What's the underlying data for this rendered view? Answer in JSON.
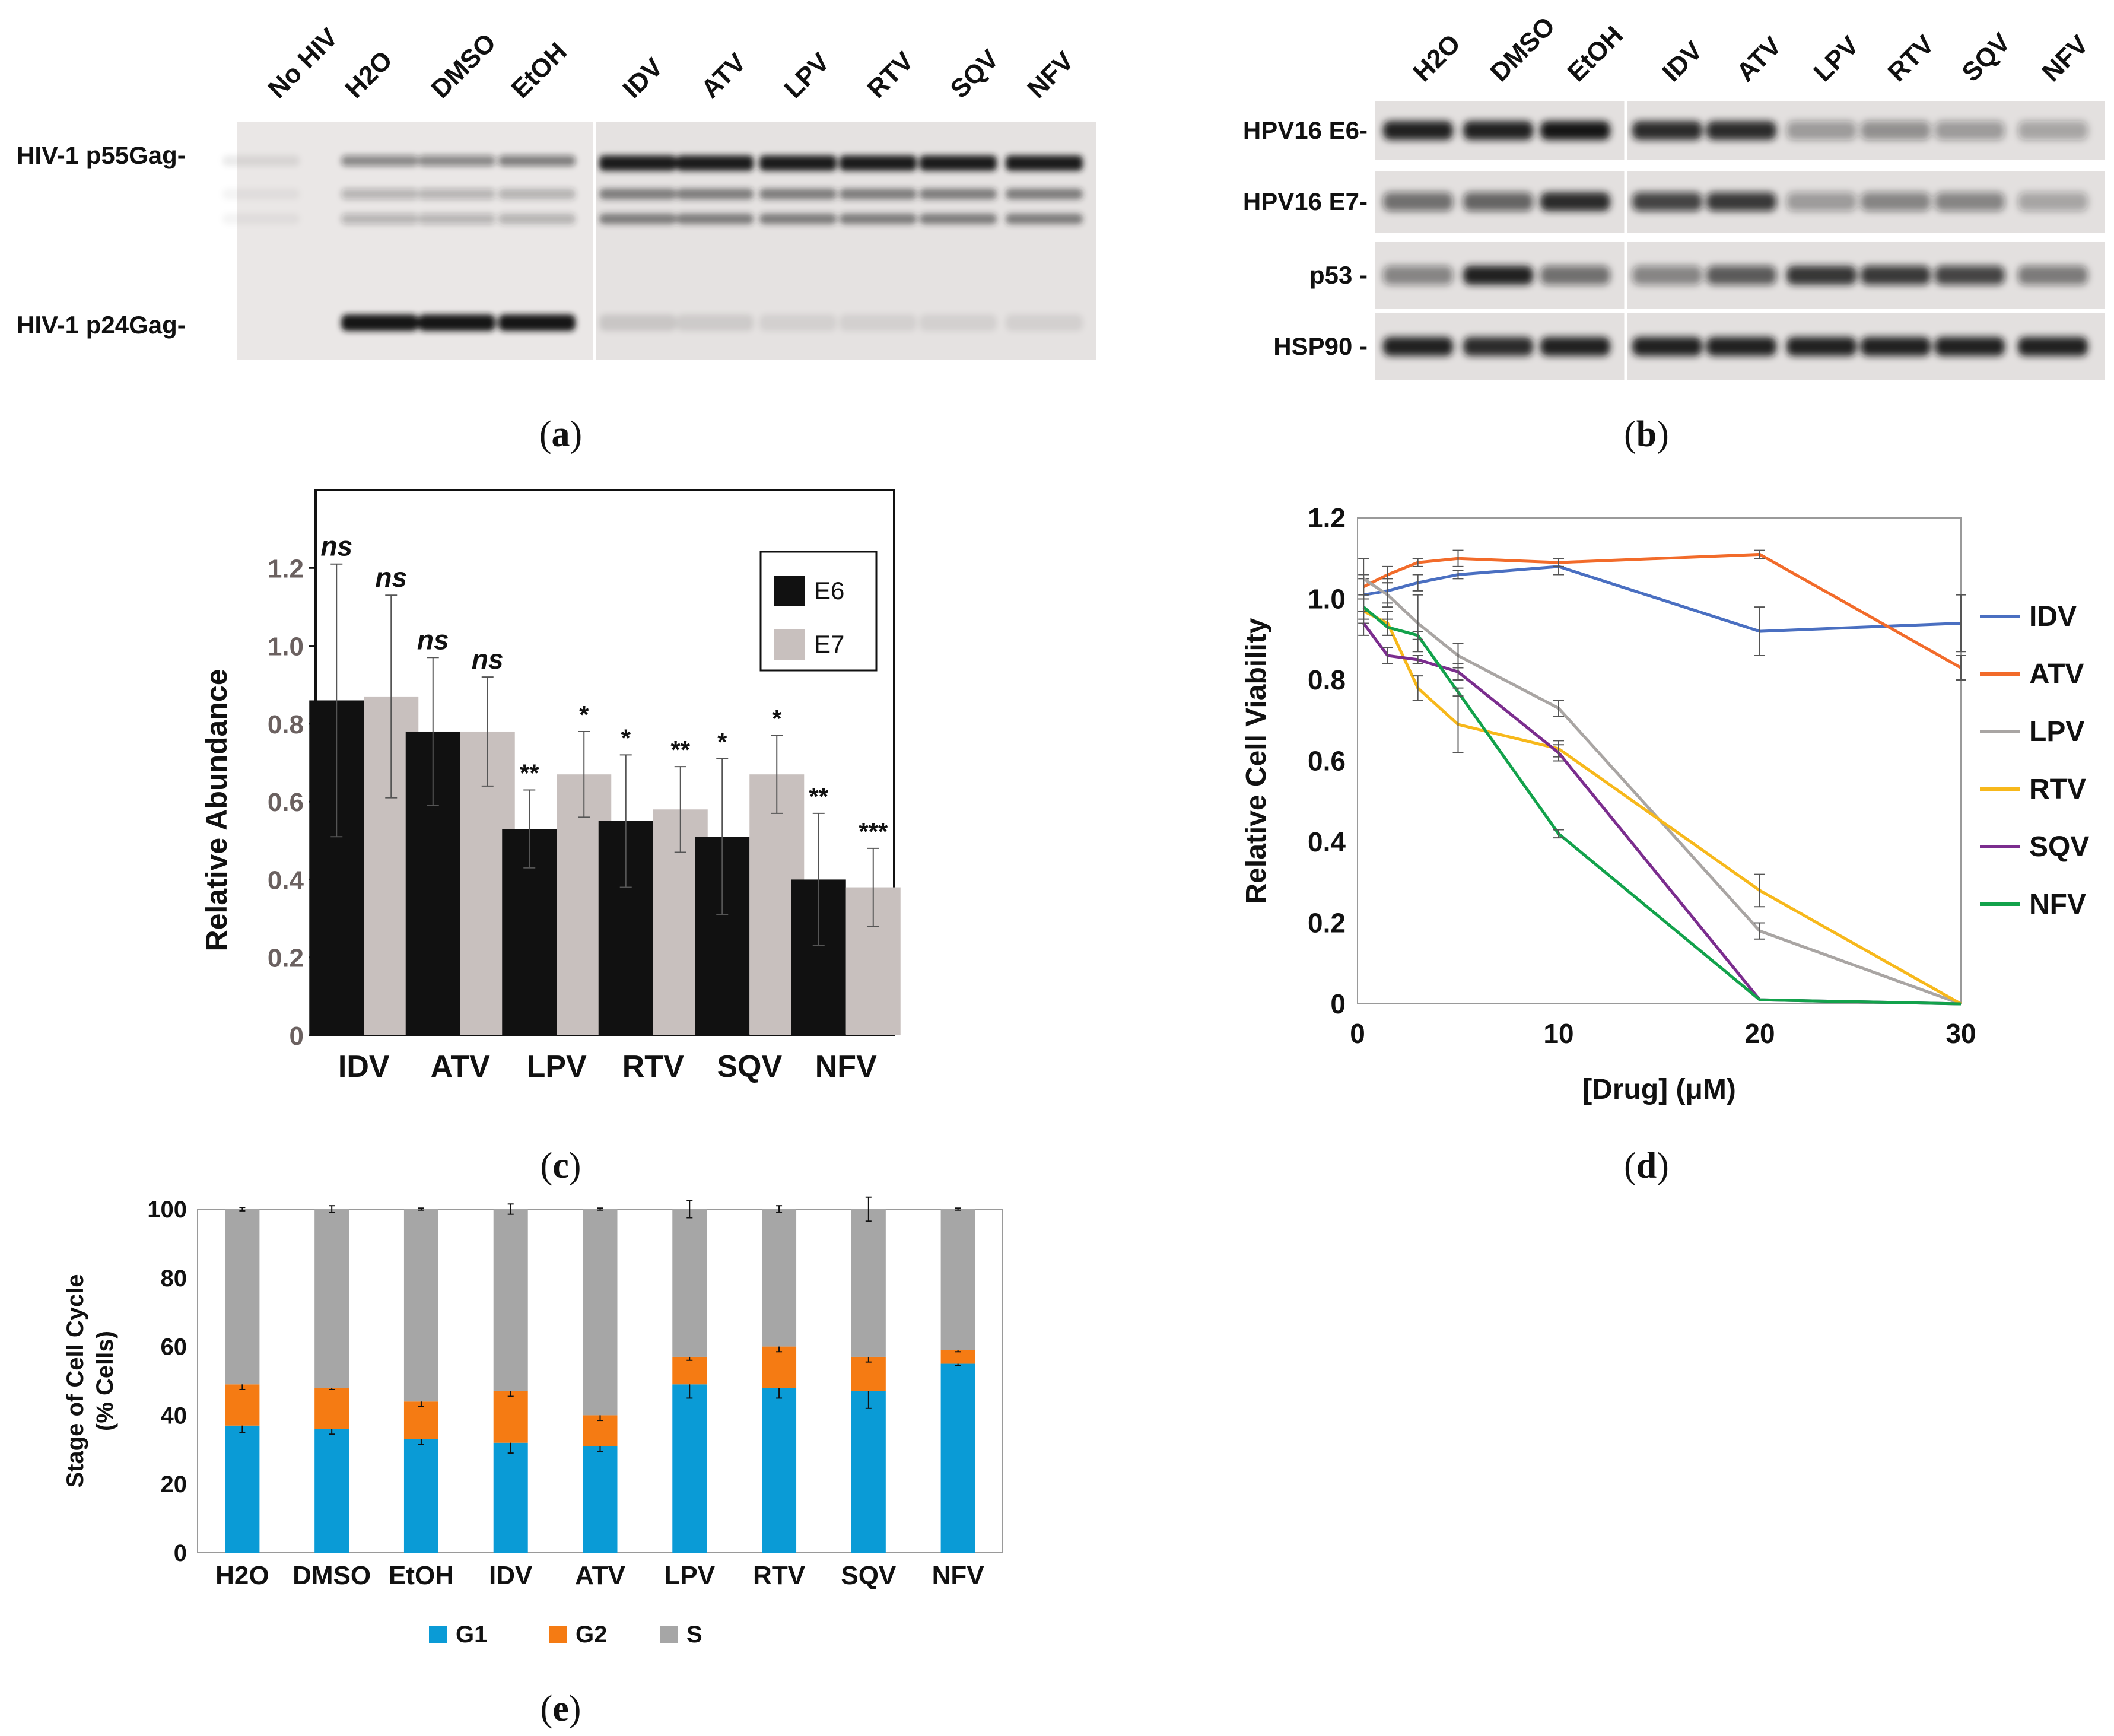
{
  "panel_a": {
    "letter": "a",
    "lanes": [
      "No HIV",
      "H2O",
      "DMSO",
      "EtOH",
      "IDV",
      "ATV",
      "LPV",
      "RTV",
      "SQV",
      "NFV"
    ],
    "bands": [
      "HIV-1 p55Gag-",
      "HIV-1 p24Gag-"
    ]
  },
  "panel_b": {
    "letter": "b",
    "lanes": [
      "H2O",
      "DMSO",
      "EtOH",
      "IDV",
      "ATV",
      "LPV",
      "RTV",
      "SQV",
      "NFV"
    ],
    "rows": [
      "HPV16 E6-",
      "HPV16 E7-",
      "p53 -",
      "HSP90 -"
    ]
  },
  "panel_c": {
    "letter": "c"
  },
  "panel_d": {
    "letter": "d"
  },
  "panel_e": {
    "letter": "e"
  },
  "chart_data": [
    {
      "id": "c",
      "type": "bar",
      "categories": [
        "IDV",
        "ATV",
        "LPV",
        "RTV",
        "SQV",
        "NFV"
      ],
      "series": [
        {
          "name": "E6",
          "color": "#111111",
          "values": [
            0.86,
            0.78,
            0.53,
            0.55,
            0.51,
            0.4
          ],
          "errors": [
            0.35,
            0.19,
            0.1,
            0.17,
            0.2,
            0.17
          ],
          "sig": [
            "ns",
            "ns",
            "**",
            "*",
            "*",
            "**"
          ]
        },
        {
          "name": "E7",
          "color": "#c8c0be",
          "values": [
            0.87,
            0.78,
            0.67,
            0.58,
            0.67,
            0.38
          ],
          "errors": [
            0.26,
            0.14,
            0.11,
            0.11,
            0.1,
            0.1
          ],
          "sig": [
            "ns",
            "ns",
            "*",
            "**",
            "*",
            "***"
          ]
        }
      ],
      "ylabel": "Relative Abundance",
      "ylim": [
        0,
        1.4
      ],
      "yticks": [
        "0",
        "0.2",
        "0.4",
        "0.6",
        "0.8",
        "1.0",
        "1.2"
      ],
      "legend": "top-right"
    },
    {
      "id": "d",
      "type": "line",
      "xlabel": "[Drug] (μM)",
      "ylabel": "Relative Cell Viability",
      "xlim": [
        0,
        30
      ],
      "ylim": [
        0,
        1.2
      ],
      "xticks": [
        "0",
        "10",
        "20",
        "30"
      ],
      "yticks": [
        "0",
        "0.2",
        "0.4",
        "0.6",
        "0.8",
        "1.0",
        "1.2"
      ],
      "x": [
        0.3,
        1.5,
        3,
        5,
        10,
        20,
        30
      ],
      "series": [
        {
          "name": "IDV",
          "color": "#4a6fc1",
          "values": [
            1.01,
            1.02,
            1.04,
            1.06,
            1.08,
            0.92,
            0.94
          ],
          "errors": [
            0.04,
            0.03,
            0.02,
            0.01,
            0.02,
            0.06,
            0.07
          ]
        },
        {
          "name": "ATV",
          "color": "#f26b2a",
          "values": [
            1.03,
            1.06,
            1.09,
            1.1,
            1.09,
            1.11,
            0.83
          ],
          "errors": [
            0.03,
            0.02,
            0.01,
            0.02,
            0.01,
            0.01,
            0.03
          ]
        },
        {
          "name": "LPV",
          "color": "#a9a5a3",
          "values": [
            1.05,
            1.01,
            0.94,
            0.86,
            0.73,
            0.18,
            0.0
          ],
          "errors": [
            0.05,
            0.03,
            0.07,
            0.03,
            0.02,
            0.02,
            0.0
          ]
        },
        {
          "name": "RTV",
          "color": "#f7b81b",
          "values": [
            0.97,
            0.94,
            0.78,
            0.69,
            0.63,
            0.28,
            0.0
          ],
          "errors": [
            0.03,
            0.03,
            0.03,
            0.07,
            0.02,
            0.04,
            0.0
          ]
        },
        {
          "name": "SQV",
          "color": "#7b2d8e",
          "values": [
            0.94,
            0.86,
            0.85,
            0.82,
            0.62,
            0.01,
            0.0
          ],
          "errors": [
            0.03,
            0.02,
            0.01,
            0.02,
            0.02,
            0.0,
            0.0
          ]
        },
        {
          "name": "NFV",
          "color": "#12a24b",
          "values": [
            0.98,
            0.93,
            0.91,
            0.77,
            0.42,
            0.01,
            0.0
          ],
          "errors": [
            0.03,
            0.02,
            0.01,
            0.01,
            0.01,
            0.0,
            0.0
          ]
        }
      ],
      "legend": "right"
    },
    {
      "id": "e",
      "type": "bar",
      "stacked": true,
      "categories": [
        "H2O",
        "DMSO",
        "EtOH",
        "IDV",
        "ATV",
        "LPV",
        "RTV",
        "SQV",
        "NFV"
      ],
      "series": [
        {
          "name": "G1",
          "color": "#0a9bd6",
          "values": [
            37,
            36,
            33,
            32,
            31,
            49,
            48,
            47,
            55
          ],
          "errors": [
            2,
            1.5,
            1.5,
            3,
            1.5,
            4,
            3,
            5,
            0.5
          ]
        },
        {
          "name": "G2",
          "color": "#f57b13",
          "values": [
            12,
            12,
            11,
            15,
            9,
            8,
            12,
            10,
            4
          ],
          "errors": [
            1.5,
            0.5,
            1.5,
            1.5,
            1.5,
            1,
            1.5,
            1.5,
            0.5
          ]
        },
        {
          "name": "S",
          "color": "#a6a6a6",
          "values": [
            51,
            52,
            56,
            53,
            60,
            43,
            40,
            43,
            41
          ],
          "errors": [
            0.5,
            1,
            0.3,
            1.5,
            0.3,
            2.5,
            1,
            3.5,
            0.3
          ]
        }
      ],
      "ylabel": "Stage of Cell Cycle\n(% Cells)",
      "ylabel_lines": [
        "Stage of Cell Cycle",
        "(% Cells)"
      ],
      "ylim": [
        0,
        100
      ],
      "yticks": [
        "0",
        "20",
        "40",
        "60",
        "80",
        "100"
      ],
      "legend": "bottom"
    }
  ]
}
